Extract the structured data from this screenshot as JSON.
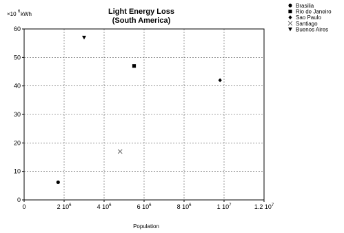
{
  "chart_data": {
    "type": "scatter",
    "title": "Light Energy Loss",
    "subtitle": "(South America)",
    "xlabel": "Population",
    "ylabel_prefix": "×10",
    "ylabel_exp": "6",
    "ylabel_unit": "kWh",
    "xlim": [
      0,
      12000000
    ],
    "ylim": [
      0,
      60
    ],
    "grid": true,
    "legend_position": "top-right",
    "x_ticks": [
      {
        "value": 0,
        "base": "0",
        "exp": ""
      },
      {
        "value": 2000000,
        "base": "2 10",
        "exp": "6"
      },
      {
        "value": 4000000,
        "base": "4 10",
        "exp": "6"
      },
      {
        "value": 6000000,
        "base": "6 10",
        "exp": "6"
      },
      {
        "value": 8000000,
        "base": "8 10",
        "exp": "6"
      },
      {
        "value": 10000000,
        "base": "1 10",
        "exp": "7"
      },
      {
        "value": 12000000,
        "base": "1.2 10",
        "exp": "7"
      }
    ],
    "y_ticks": [
      0,
      10,
      20,
      30,
      40,
      50,
      60
    ],
    "series": [
      {
        "name": "Brasilia",
        "marker": "circle",
        "x": 1700000,
        "y": 6.2
      },
      {
        "name": "Rio de Janeiro",
        "marker": "square",
        "x": 5500000,
        "y": 47
      },
      {
        "name": "Sao Paulo",
        "marker": "diamond",
        "x": 9800000,
        "y": 42
      },
      {
        "name": "Santiago",
        "marker": "cross",
        "x": 4800000,
        "y": 17
      },
      {
        "name": "Buenos Aires",
        "marker": "triangle-down",
        "x": 3000000,
        "y": 57
      }
    ]
  }
}
